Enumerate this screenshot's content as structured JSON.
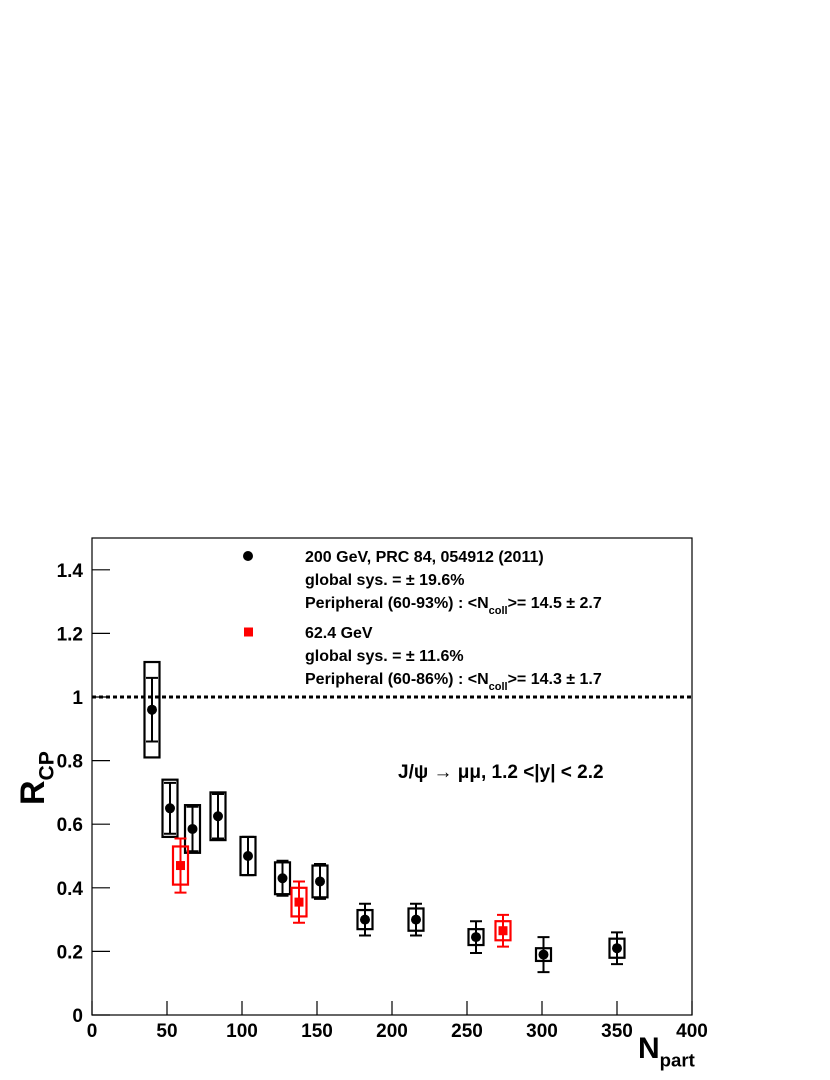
{
  "chart_data": {
    "type": "scatter",
    "xlabel": {
      "text": "N",
      "sub": "part"
    },
    "ylabel": {
      "text": "R",
      "sub": "CP"
    },
    "xlim": [
      0,
      400
    ],
    "ylim": [
      0,
      1.5
    ],
    "xticks": [
      0,
      50,
      100,
      150,
      200,
      250,
      300,
      350,
      400
    ],
    "yticks": [
      0,
      0.2,
      0.4,
      0.6,
      0.8,
      1,
      1.2,
      1.4
    ],
    "reference_line": 1,
    "annotation": "J/ψ → μμ, 1.2 <|y| < 2.2",
    "series": [
      {
        "name": "200 GeV, PRC 84, 054912 (2011)",
        "color": "#000000",
        "marker": "circle",
        "notes": [
          {
            "text": "global sys. = ± 19.6%"
          },
          {
            "text": "Peripheral (60-93%) : <N",
            "sub": "coll",
            "tail": ">= 14.5 ± 2.7"
          }
        ],
        "x": [
          40,
          52,
          67,
          84,
          104,
          127,
          152,
          182,
          216,
          256,
          301,
          350
        ],
        "values": [
          0.96,
          0.65,
          0.585,
          0.625,
          0.5,
          0.43,
          0.42,
          0.3,
          0.3,
          0.245,
          0.19,
          0.21
        ],
        "errors": [
          0.1,
          0.08,
          0.07,
          0.07,
          0.06,
          0.055,
          0.055,
          0.05,
          0.05,
          0.05,
          0.055,
          0.05
        ],
        "sys_errors": [
          0.15,
          0.09,
          0.075,
          0.075,
          0.06,
          0.05,
          0.05,
          0.03,
          0.035,
          0.025,
          0.02,
          0.03
        ]
      },
      {
        "name": "62.4 GeV",
        "color": "#ff0000",
        "marker": "square",
        "notes": [
          {
            "text": "global sys. = ± 11.6%"
          },
          {
            "text": "Peripheral (60-86%) : <N",
            "sub": "coll",
            "tail": ">= 14.3 ± 1.7"
          }
        ],
        "x": [
          59,
          138,
          274
        ],
        "values": [
          0.47,
          0.355,
          0.265
        ],
        "errors": [
          0.085,
          0.065,
          0.05
        ],
        "sys_errors": [
          0.06,
          0.045,
          0.03
        ]
      }
    ]
  }
}
